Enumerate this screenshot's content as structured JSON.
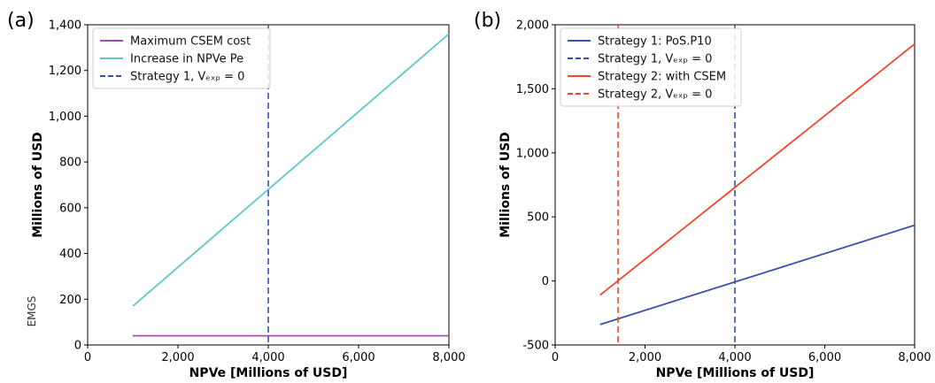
{
  "watermark": "EMGS",
  "chart_data": [
    {
      "panel_label": "(a)",
      "type": "line",
      "xlabel": "NPVe [Millions of USD]",
      "ylabel": "Millions of USD",
      "xlim": [
        0,
        8000
      ],
      "ylim": [
        0,
        1400
      ],
      "xticks": [
        0,
        2000,
        4000,
        6000,
        8000
      ],
      "xtick_labels": [
        "0",
        "2,000",
        "4,000",
        "6,000",
        "8,000"
      ],
      "yticks": [
        0,
        200,
        400,
        600,
        800,
        1000,
        1200,
        1400
      ],
      "ytick_labels": [
        "0",
        "200",
        "400",
        "600",
        "800",
        "1,000",
        "1,200",
        "1,400"
      ],
      "legend_position": "top-left",
      "series": [
        {
          "name": "Maximum CSEM cost",
          "color": "#a24cb8",
          "dash": "solid",
          "x": [
            1000,
            8000
          ],
          "y": [
            40,
            40
          ]
        },
        {
          "name": "Increase in NPVe Pe",
          "color": "#5ac8cc",
          "dash": "solid",
          "x": [
            1000,
            8000
          ],
          "y": [
            170,
            1360
          ]
        },
        {
          "name": "Strategy 1, Vₑₓₚ = 0",
          "color": "#3c4fb0",
          "dash": "dashed",
          "vline": 4000
        }
      ]
    },
    {
      "panel_label": "(b)",
      "type": "line",
      "xlabel": "NPVe [Millions of USD]",
      "ylabel": "Millions of USD",
      "xlim": [
        0,
        8000
      ],
      "ylim": [
        -500,
        2000
      ],
      "xticks": [
        0,
        2000,
        4000,
        6000,
        8000
      ],
      "xtick_labels": [
        "0",
        "2,000",
        "4,000",
        "6,000",
        "8,000"
      ],
      "yticks": [
        -500,
        0,
        500,
        1000,
        1500,
        2000
      ],
      "ytick_labels": [
        "-500",
        "0",
        "500",
        "1,000",
        "1,500",
        "2,000"
      ],
      "legend_position": "top-left",
      "series": [
        {
          "name": "Strategy 1: PoS.P10",
          "color": "#3c4fb0",
          "dash": "solid",
          "x": [
            1000,
            8000
          ],
          "y": [
            -340,
            435
          ]
        },
        {
          "name": "Strategy 1, Vₑₓₚ = 0",
          "color": "#3c4fb0",
          "dash": "dashed",
          "vline": 4000
        },
        {
          "name": "Strategy 2: with CSEM",
          "color": "#f2462c",
          "dash": "solid",
          "x": [
            1000,
            8000
          ],
          "y": [
            -110,
            1850
          ]
        },
        {
          "name": "Strategy 2, Vₑₓₚ = 0",
          "color": "#f2462c",
          "dash": "dashed",
          "vline": 1400
        }
      ]
    }
  ]
}
